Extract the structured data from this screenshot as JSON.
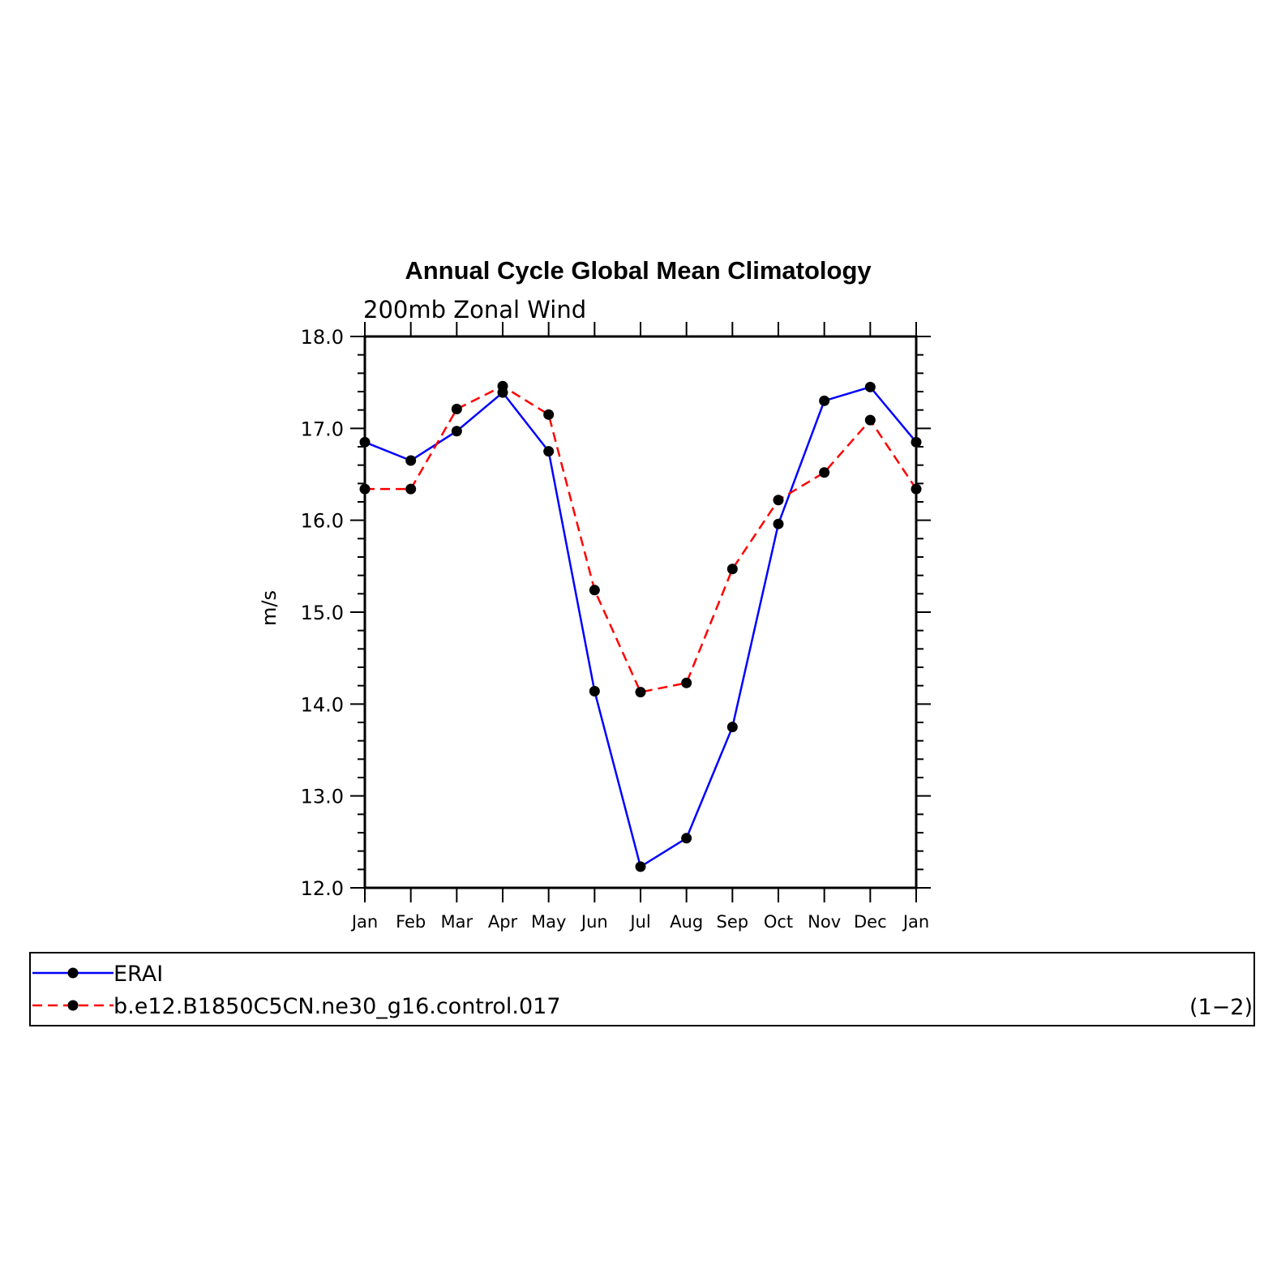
{
  "chart_data": {
    "type": "line",
    "title": "Annual Cycle Global Mean Climatology",
    "subtitle": "200mb Zonal Wind",
    "ylabel": "m/s",
    "xlabel": "",
    "categories": [
      "Jan",
      "Feb",
      "Mar",
      "Apr",
      "May",
      "Jun",
      "Jul",
      "Aug",
      "Sep",
      "Oct",
      "Nov",
      "Dec",
      "Jan"
    ],
    "ylim": [
      12.0,
      18.0
    ],
    "yticks": [
      "12.0",
      "13.0",
      "14.0",
      "15.0",
      "16.0",
      "17.0",
      "18.0"
    ],
    "series": [
      {
        "name": "ERAI",
        "color": "#0000ff",
        "dash": "solid",
        "values": [
          16.85,
          16.65,
          16.97,
          17.39,
          16.75,
          14.14,
          12.23,
          12.54,
          13.75,
          15.96,
          17.3,
          17.45,
          16.85
        ]
      },
      {
        "name": "b.e12.B1850C5CN.ne30_g16.control.017",
        "color": "#ff0000",
        "dash": "dashed",
        "values": [
          16.34,
          16.34,
          17.21,
          17.46,
          17.15,
          15.24,
          14.13,
          14.23,
          15.47,
          16.22,
          16.52,
          17.09,
          16.34
        ]
      }
    ],
    "legend_placement": "bottom",
    "panel_label": "(1−2)"
  }
}
